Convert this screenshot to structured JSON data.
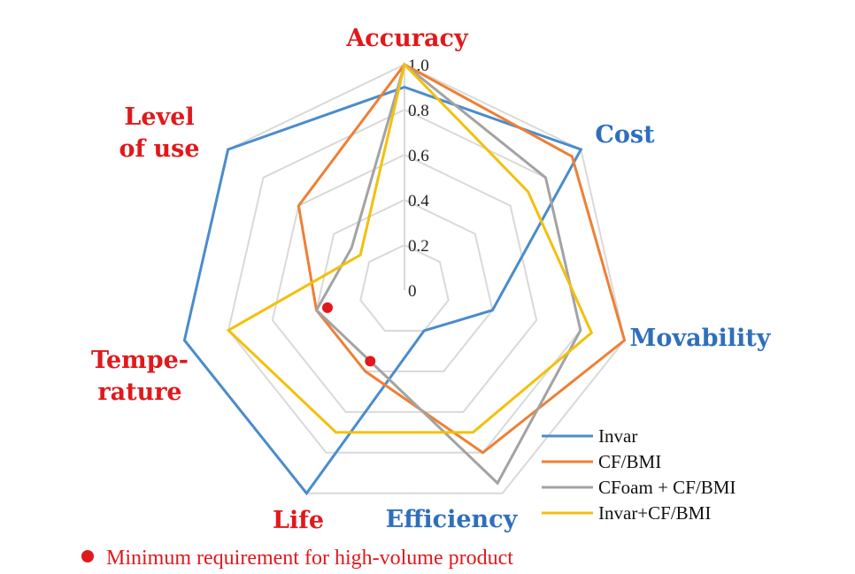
{
  "chart_data": {
    "type": "radar",
    "axes": [
      {
        "label": [
          "Accuracy"
        ],
        "color": "#e0191c"
      },
      {
        "label": [
          "Cost"
        ],
        "color": "#2e6fbd"
      },
      {
        "label": [
          "Movability"
        ],
        "color": "#2e6fbd"
      },
      {
        "label": [
          "Efficiency"
        ],
        "color": "#2e6fbd"
      },
      {
        "label": [
          "Life"
        ],
        "color": "#e0191c"
      },
      {
        "label": [
          "Tempe-",
          "rature"
        ],
        "color": "#e0191c"
      },
      {
        "label": [
          "Level",
          "of use"
        ],
        "color": "#e0191c"
      }
    ],
    "rlim": [
      0,
      1.0
    ],
    "ticks": [
      "0",
      "0.2",
      "0.4",
      "0.6",
      "0.8",
      "1.0"
    ],
    "tick_values": [
      0,
      0.2,
      0.4,
      0.6,
      0.8,
      1.0
    ],
    "series": [
      {
        "name": "Invar",
        "color": "#4a8ccd",
        "values": [
          0.9,
          1.0,
          0.4,
          0.2,
          1.0,
          1.0,
          1.0
        ]
      },
      {
        "name": "CF/BMI",
        "color": "#ef7f34",
        "values": [
          1.0,
          0.95,
          1.0,
          0.8,
          0.4,
          0.4,
          0.6
        ]
      },
      {
        "name": "CFoam + CF/BMI",
        "color": "#a3a3a3",
        "values": [
          1.0,
          0.8,
          0.8,
          0.95,
          0.35,
          0.4,
          0.3
        ]
      },
      {
        "name": "Invar+CF/BMI",
        "color": "#f3c00c",
        "values": [
          1.0,
          0.7,
          0.85,
          0.7,
          0.7,
          0.8,
          0.25
        ]
      }
    ],
    "min_requirement": {
      "values": {
        "Life": 0.35,
        "Temperature": 0.35
      },
      "color": "#e0191c"
    },
    "legend_position": "bottom-right"
  },
  "note": {
    "text": "Minimum requirement for high-volume product",
    "color": "#e0191c"
  }
}
